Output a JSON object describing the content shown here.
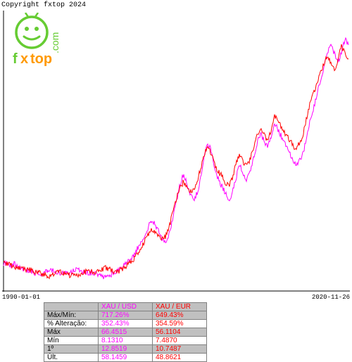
{
  "copyright": "Copyright fxtop 2024",
  "logo": {
    "text_fx": "f",
    "text_x": "x",
    "text_top": "top",
    "dotcom": ".com",
    "face_color": "#66cc33",
    "top_color": "#ff9900",
    "x_color": "#ff9900",
    "fontsize": 18
  },
  "chart": {
    "type": "line",
    "background_color": "#ffffff",
    "axis_color": "#000000",
    "date_start": "1990-01-01",
    "date_end": "2020-11-26",
    "date_fontsize": 9,
    "series": [
      {
        "name": "XAU / USD",
        "color": "#ff00ff",
        "line_width": 1,
        "ylim": [
          0,
          800
        ],
        "data": [
          80,
          75,
          72,
          78,
          70,
          65,
          62,
          58,
          55,
          52,
          50,
          48,
          55,
          60,
          58,
          55,
          52,
          50,
          48,
          52,
          58,
          62,
          58,
          55,
          52,
          50,
          48,
          45,
          42,
          40,
          45,
          50,
          55,
          60,
          70,
          80,
          90,
          100,
          120,
          140,
          160,
          180,
          200,
          190,
          170,
          150,
          140,
          160,
          200,
          250,
          300,
          330,
          310,
          280,
          260,
          280,
          320,
          380,
          420,
          400,
          350,
          320,
          300,
          280,
          260,
          280,
          320,
          360,
          340,
          320,
          340,
          380,
          420,
          450,
          430,
          410,
          440,
          480,
          460,
          440,
          420,
          400,
          380,
          360,
          370,
          390,
          430,
          480,
          520,
          560,
          600,
          640,
          680,
          700,
          680,
          650,
          680,
          720,
          700
        ]
      },
      {
        "name": "XAU / EUR",
        "color": "#ff0000",
        "line_width": 1,
        "ylim": [
          0,
          800
        ],
        "data": [
          78,
          80,
          75,
          70,
          68,
          65,
          60,
          62,
          58,
          55,
          52,
          50,
          45,
          42,
          45,
          50,
          55,
          50,
          48,
          45,
          42,
          45,
          50,
          55,
          58,
          55,
          52,
          55,
          60,
          65,
          62,
          58,
          55,
          58,
          65,
          72,
          80,
          90,
          105,
          120,
          140,
          160,
          175,
          170,
          160,
          150,
          155,
          180,
          220,
          260,
          290,
          310,
          300,
          280,
          290,
          310,
          350,
          390,
          410,
          390,
          360,
          340,
          330,
          310,
          300,
          320,
          360,
          390,
          370,
          355,
          375,
          410,
          440,
          460,
          445,
          430,
          460,
          500,
          485,
          465,
          450,
          435,
          420,
          405,
          420,
          445,
          490,
          530,
          560,
          590,
          620,
          650,
          670,
          650,
          630,
          660,
          700,
          680,
          660
        ]
      }
    ]
  },
  "table": {
    "header_bg": "#c0c0c0",
    "row_alt_bg": "#c0c0c0",
    "row_bg": "#ffffff",
    "border_color": "#808080",
    "fontsize": 10,
    "columns": [
      {
        "label": "XAU / USD",
        "color": "#ff00ff"
      },
      {
        "label": "XAU / EUR",
        "color": "#ff0000"
      }
    ],
    "rows": [
      {
        "label": "Máx/Mín:",
        "v1": "717.26%",
        "v2": "649.43%"
      },
      {
        "label": "% Alteração:",
        "v1": "352.43%",
        "v2": "354.59%"
      },
      {
        "label": "Máx",
        "v1": "66.4515",
        "v2": "56.1104"
      },
      {
        "label": "Mín",
        "v1": "8.1310",
        "v2": "7.4870"
      },
      {
        "label": "1º",
        "v1": "12.8519",
        "v2": "10.7487"
      },
      {
        "label": "Últ.",
        "v1": "58.1459",
        "v2": "48.8621"
      }
    ]
  }
}
